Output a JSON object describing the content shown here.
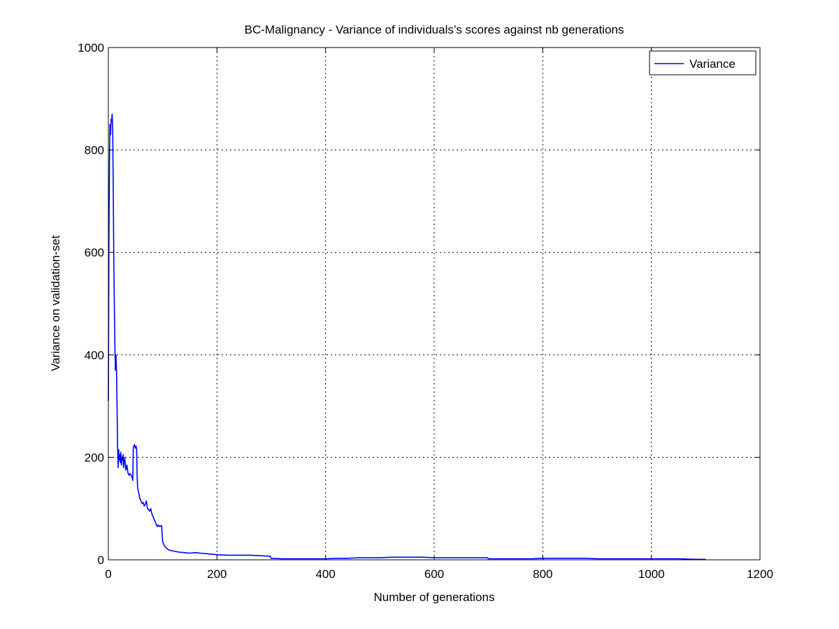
{
  "chart_data": {
    "type": "line",
    "title": "BC-Malignancy - Variance of individuals’s scores against nb generations",
    "xlabel": "Number of generations",
    "ylabel": "Variance on validation-set",
    "xlim": [
      0,
      1200
    ],
    "ylim": [
      0,
      1000
    ],
    "xticks": [
      0,
      200,
      400,
      600,
      800,
      1000,
      1200
    ],
    "yticks": [
      0,
      200,
      400,
      600,
      800,
      1000
    ],
    "xtick_labels": [
      "0",
      "200",
      "400",
      "600",
      "800",
      "1000",
      "1200"
    ],
    "ytick_labels": [
      "0",
      "200",
      "400",
      "600",
      "800",
      "1000"
    ],
    "grid": true,
    "legend_position": "top-right",
    "series": [
      {
        "name": "Variance",
        "color": "#0000ff",
        "x": [
          0,
          1,
          2,
          3,
          4,
          5,
          6,
          7,
          8,
          9,
          10,
          11,
          12,
          13,
          14,
          15,
          16,
          17,
          18,
          19,
          20,
          21,
          22,
          23,
          24,
          25,
          26,
          27,
          28,
          30,
          32,
          34,
          36,
          38,
          40,
          42,
          44,
          45,
          46,
          47,
          48,
          49,
          50,
          51,
          52,
          53,
          54,
          55,
          56,
          57,
          58,
          60,
          62,
          64,
          66,
          68,
          70,
          72,
          74,
          76,
          78,
          80,
          82,
          84,
          86,
          88,
          90,
          92,
          94,
          96,
          98,
          99,
          100,
          102,
          105,
          110,
          115,
          120,
          130,
          140,
          150,
          160,
          170,
          180,
          190,
          200,
          220,
          240,
          260,
          280,
          298,
          300,
          320,
          350,
          380,
          400,
          420,
          440,
          460,
          480,
          500,
          520,
          540,
          560,
          580,
          600,
          620,
          640,
          660,
          680,
          698,
          700,
          720,
          750,
          780,
          800,
          820,
          850,
          880,
          900,
          950,
          1000,
          1050,
          1080,
          1100
        ],
        "y": [
          310,
          620,
          780,
          850,
          830,
          860,
          855,
          870,
          840,
          720,
          580,
          500,
          420,
          370,
          400,
          365,
          300,
          220,
          180,
          215,
          195,
          205,
          190,
          210,
          185,
          200,
          195,
          205,
          180,
          200,
          175,
          185,
          170,
          165,
          168,
          165,
          160,
          155,
          220,
          222,
          225,
          220,
          218,
          222,
          215,
          160,
          140,
          135,
          130,
          125,
          120,
          115,
          110,
          112,
          105,
          108,
          115,
          100,
          98,
          95,
          100,
          90,
          85,
          80,
          75,
          70,
          65,
          68,
          65,
          66,
          67,
          50,
          35,
          30,
          25,
          20,
          18,
          17,
          15,
          14,
          13,
          14,
          13,
          12,
          11,
          10,
          9,
          9,
          9,
          8,
          7,
          3,
          2,
          2,
          2,
          2,
          3,
          3,
          4,
          4,
          4,
          5,
          5,
          5,
          5,
          4,
          4,
          4,
          4,
          4,
          4,
          2,
          2,
          2,
          2,
          3,
          3,
          3,
          3,
          2,
          2,
          2,
          2,
          1,
          1
        ]
      }
    ]
  }
}
